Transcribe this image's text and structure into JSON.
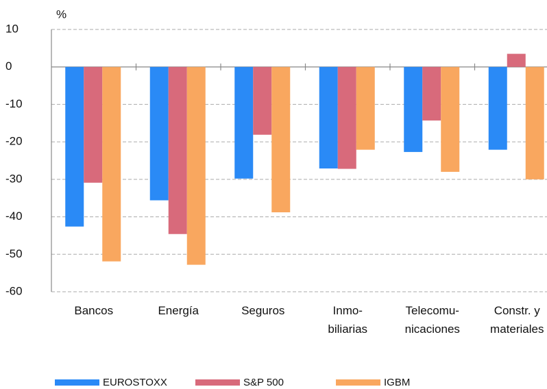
{
  "chart_data": {
    "type": "bar",
    "y_unit": "%",
    "categories": [
      [
        "Bancos"
      ],
      [
        "Energía"
      ],
      [
        "Seguros"
      ],
      [
        "Inmo-",
        "biliarias"
      ],
      [
        "Telecomu-",
        "nicaciones"
      ],
      [
        "Constr. y",
        "materiales"
      ]
    ],
    "series": [
      {
        "name": "EUROSTOXX",
        "color": "#2a8af6",
        "values": [
          -42.6,
          -35.6,
          -29.8,
          -27.1,
          -22.7,
          -22.1
        ]
      },
      {
        "name": "S&P 500",
        "color": "#d86a7b",
        "values": [
          -30.9,
          -44.6,
          -18.1,
          -27.2,
          -14.3,
          3.5
        ]
      },
      {
        "name": "IGBM",
        "color": "#f9a75f",
        "values": [
          -51.9,
          -52.8,
          -38.8,
          -22.1,
          -28.0,
          -30.0
        ]
      }
    ],
    "ylim": [
      -60,
      10
    ],
    "yticks": [
      -60,
      -50,
      -40,
      -30,
      -20,
      -10,
      0,
      10
    ],
    "grid": true
  }
}
